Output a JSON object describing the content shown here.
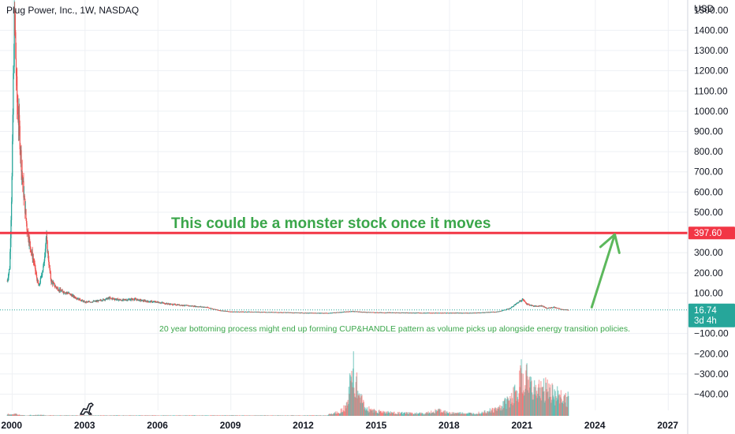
{
  "header": {
    "symbol_title": "Plug Power, Inc., 1W, NASDAQ",
    "currency": "USD"
  },
  "chart_data": {
    "type": "candlestick",
    "title": "Plug Power, Inc., 1W, NASDAQ",
    "ylabel": "USD",
    "ylim": [
      -480,
      1550
    ],
    "y_ticks": [
      "1400.00",
      "1300.00",
      "1200.00",
      "1100.00",
      "1000.00",
      "900.00",
      "800.00",
      "700.00",
      "600.00",
      "500.00",
      "400.00",
      "300.00",
      "200.00",
      "100.00",
      "−100.00",
      "−200.00",
      "−300.00",
      "−400.00"
    ],
    "y_tick_values": [
      1400,
      1300,
      1200,
      1100,
      1000,
      900,
      800,
      700,
      600,
      500,
      400,
      300,
      200,
      100,
      -100,
      -200,
      -300,
      -400
    ],
    "top_tick_partial": "1500.00",
    "x_ticks": [
      "2000",
      "2003",
      "2006",
      "2009",
      "2012",
      "2015",
      "2018",
      "2021",
      "2024",
      "2027"
    ],
    "x_tick_years": [
      2000,
      2003,
      2006,
      2009,
      2012,
      2015,
      2018,
      2021,
      2024,
      2027
    ],
    "xlim": [
      1999.5,
      2027.8
    ],
    "price_path": [
      [
        1999.8,
        160
      ],
      [
        1999.9,
        230
      ],
      [
        2000.0,
        700
      ],
      [
        2000.05,
        1150
      ],
      [
        2000.1,
        1500
      ],
      [
        2000.15,
        1250
      ],
      [
        2000.2,
        1050
      ],
      [
        2000.3,
        900
      ],
      [
        2000.4,
        700
      ],
      [
        2000.5,
        560
      ],
      [
        2000.6,
        430
      ],
      [
        2000.7,
        360
      ],
      [
        2000.8,
        300
      ],
      [
        2000.9,
        250
      ],
      [
        2001.0,
        180
      ],
      [
        2001.1,
        130
      ],
      [
        2001.3,
        240
      ],
      [
        2001.4,
        380
      ],
      [
        2001.5,
        260
      ],
      [
        2001.6,
        160
      ],
      [
        2001.8,
        130
      ],
      [
        2002.0,
        110
      ],
      [
        2002.3,
        100
      ],
      [
        2002.5,
        85
      ],
      [
        2003.0,
        55
      ],
      [
        2003.5,
        60
      ],
      [
        2004.0,
        75
      ],
      [
        2004.5,
        65
      ],
      [
        2005.0,
        70
      ],
      [
        2005.5,
        60
      ],
      [
        2006.0,
        55
      ],
      [
        2006.5,
        45
      ],
      [
        2007.0,
        40
      ],
      [
        2007.5,
        35
      ],
      [
        2008.0,
        30
      ],
      [
        2008.5,
        15
      ],
      [
        2009.0,
        8
      ],
      [
        2010.0,
        7
      ],
      [
        2011.0,
        5
      ],
      [
        2012.0,
        2
      ],
      [
        2013.0,
        1
      ],
      [
        2014.0,
        10
      ],
      [
        2014.5,
        6
      ],
      [
        2015.0,
        4
      ],
      [
        2016.0,
        3
      ],
      [
        2017.0,
        2
      ],
      [
        2018.0,
        2
      ],
      [
        2019.0,
        2
      ],
      [
        2020.0,
        8
      ],
      [
        2020.5,
        25
      ],
      [
        2021.0,
        70
      ],
      [
        2021.2,
        45
      ],
      [
        2021.5,
        35
      ],
      [
        2021.8,
        38
      ],
      [
        2022.0,
        25
      ],
      [
        2022.3,
        30
      ],
      [
        2022.6,
        20
      ],
      [
        2022.9,
        16.74
      ]
    ],
    "volume_profile": [
      [
        2013.0,
        0.03
      ],
      [
        2013.5,
        0.08
      ],
      [
        2013.8,
        0.2
      ],
      [
        2014.0,
        0.9
      ],
      [
        2014.2,
        0.5
      ],
      [
        2014.5,
        0.15
      ],
      [
        2015.0,
        0.08
      ],
      [
        2015.5,
        0.06
      ],
      [
        2016.0,
        0.05
      ],
      [
        2017.0,
        0.04
      ],
      [
        2017.5,
        0.1
      ],
      [
        2018.0,
        0.05
      ],
      [
        2019.0,
        0.04
      ],
      [
        2020.0,
        0.12
      ],
      [
        2020.5,
        0.3
      ],
      [
        2020.8,
        0.45
      ],
      [
        2021.0,
        0.8
      ],
      [
        2021.3,
        0.55
      ],
      [
        2021.6,
        0.45
      ],
      [
        2022.0,
        0.5
      ],
      [
        2022.5,
        0.35
      ],
      [
        2022.9,
        0.3
      ]
    ],
    "early_volume": [
      [
        1999.9,
        0.03
      ],
      [
        2000.2,
        0.02
      ],
      [
        2001.0,
        0.015
      ]
    ],
    "horizontal_level": {
      "value": 397.6,
      "label": "397.60",
      "color": "#f23645"
    },
    "current_price": {
      "value": 16.74,
      "label": "16.74",
      "countdown": "3d 4h",
      "color": "#26a69a"
    },
    "annotations": {
      "headline": "This could be a monster stock once it moves",
      "note": "20 year bottoming process might end up forming CUP&HANDLE pattern as volume picks up alongside energy transition policies."
    },
    "arrow": {
      "from_year": 2023.85,
      "from_value": 30,
      "to_year": 2024.8,
      "to_value": 390,
      "color": "#5cb85c"
    },
    "colors": {
      "up": "#26a69a",
      "down": "#ef5350",
      "grid": "#eef0f4"
    }
  },
  "icons": {
    "logo": "dinosaur-logo-icon"
  }
}
